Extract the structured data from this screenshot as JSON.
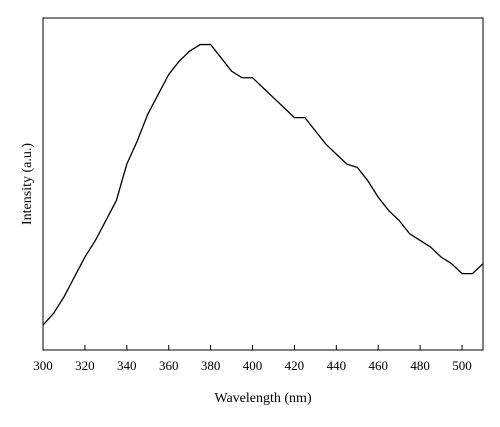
{
  "chart_data": {
    "type": "line",
    "x_label": "Wavelength (nm)",
    "y_label": "Intensity (a.u.)",
    "x": [
      300,
      305,
      310,
      315,
      320,
      325,
      330,
      335,
      340,
      345,
      350,
      355,
      360,
      365,
      370,
      375,
      380,
      385,
      390,
      395,
      400,
      405,
      410,
      415,
      420,
      425,
      430,
      435,
      440,
      445,
      450,
      455,
      460,
      465,
      470,
      475,
      480,
      485,
      490,
      495,
      500,
      505,
      510
    ],
    "series": [
      {
        "color": "#000000",
        "values": [
          0.075,
          0.11,
          0.16,
          0.22,
          0.28,
          0.33,
          0.39,
          0.45,
          0.56,
          0.63,
          0.71,
          0.77,
          0.83,
          0.87,
          0.9,
          0.92,
          0.92,
          0.88,
          0.84,
          0.82,
          0.82,
          0.79,
          0.76,
          0.73,
          0.7,
          0.7,
          0.66,
          0.62,
          0.59,
          0.56,
          0.55,
          0.51,
          0.46,
          0.42,
          0.39,
          0.35,
          0.33,
          0.31,
          0.28,
          0.26,
          0.23,
          0.23,
          0.26
        ]
      }
    ],
    "xlim": [
      300,
      510
    ],
    "xticks": [
      300,
      320,
      340,
      360,
      380,
      400,
      420,
      440,
      460,
      480,
      500
    ],
    "ylim": [
      0,
      1
    ],
    "yticks": []
  }
}
